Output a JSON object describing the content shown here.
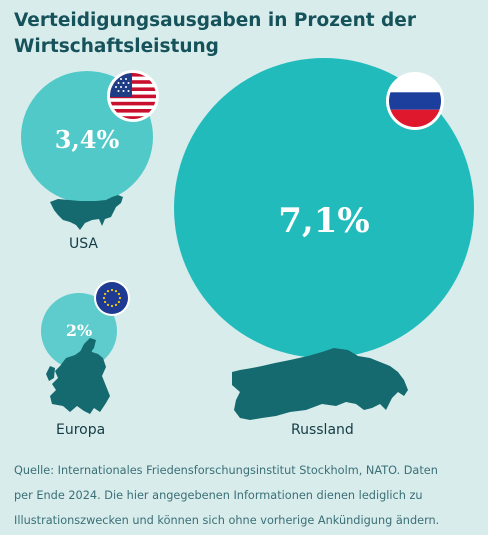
{
  "title_lines": [
    "Verteidigungsausgaben in Prozent der",
    "Wirtschaftsleistung"
  ],
  "chart_data": {
    "type": "bubble",
    "unit": "%",
    "entries": [
      {
        "region": "USA",
        "value": 3.4,
        "value_label": "3,4%",
        "flag": "us-flag-icon",
        "map": "usa-map-icon"
      },
      {
        "region": "Europa",
        "value": 2.0,
        "value_label": "2%",
        "flag": "eu-flag-icon",
        "map": "europe-map-icon"
      },
      {
        "region": "Russland",
        "value": 7.1,
        "value_label": "7,1%",
        "flag": "russia-flag-icon",
        "map": "russia-map-icon"
      }
    ]
  },
  "source_lines": [
    "Quelle: Internationales Friedensforschungsinstitut Stockholm, NATO. Daten",
    "per Ende 2024. Die hier angegebenen Informationen dienen lediglich zu",
    "Illustrationszwecken und können sich ohne vorherige Ankündigung ändern."
  ],
  "colors": {
    "background": "#d8ecec",
    "bubble": "#23bcbc",
    "bubble_light": "#4ec8c8",
    "map": "#146a6e",
    "title": "#15525a"
  }
}
